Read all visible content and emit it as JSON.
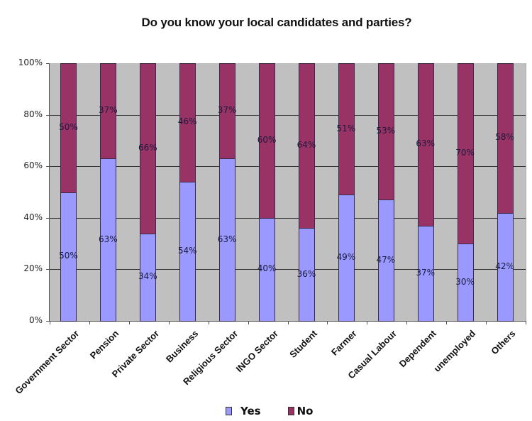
{
  "chart_data": {
    "type": "bar",
    "stacked": true,
    "percent_stacked": true,
    "title": "Do you know your local candidates and parties?",
    "xlabel": "",
    "ylabel": "",
    "ylim": [
      0,
      100
    ],
    "y_ticks": [
      "0%",
      "20%",
      "40%",
      "60%",
      "80%",
      "100%"
    ],
    "grid": true,
    "legend_position": "bottom",
    "categories": [
      "Government Sector",
      "Pension",
      "Private Sector",
      "Business",
      "Religious Sector",
      "INGO Sector",
      "Student",
      "Farmer",
      "Casual Labour",
      "Dependent",
      "unemployed",
      "Others"
    ],
    "series": [
      {
        "name": "Yes",
        "color": "#9999ff",
        "values": [
          50,
          63,
          34,
          54,
          63,
          40,
          36,
          49,
          47,
          37,
          30,
          42
        ]
      },
      {
        "name": "No",
        "color": "#993366",
        "values": [
          50,
          37,
          66,
          46,
          37,
          60,
          64,
          51,
          53,
          63,
          70,
          58
        ]
      }
    ],
    "plot_background": "#c0c0c0"
  },
  "legend": {
    "items": [
      {
        "label": "Yes",
        "color": "#9999ff"
      },
      {
        "label": "No",
        "color": "#993366"
      }
    ]
  }
}
